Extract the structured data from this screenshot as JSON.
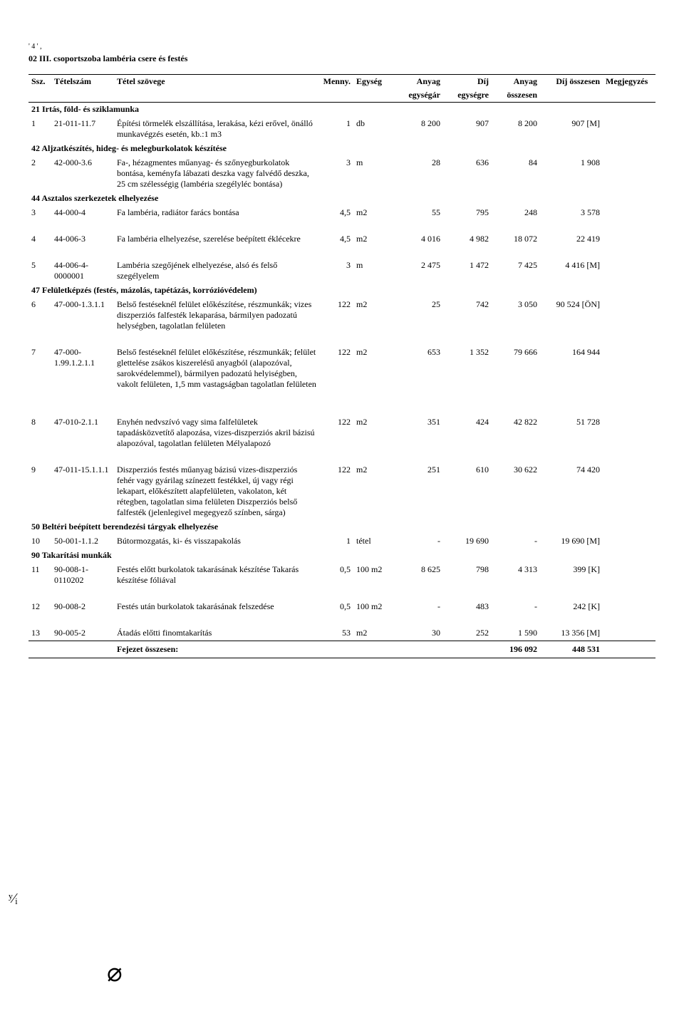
{
  "page_marks": "'  4        ' ,",
  "doc_title": "02 III. csoportszoba lambéria csere és festés",
  "headers": {
    "ssz": "Ssz.",
    "tetelszam": "Tételszám",
    "szoveg": "Tétel szövege",
    "menny": "Menny.",
    "egyseg": "Egység",
    "anyag_egysegar": "Anyag",
    "anyag_egysegar2": "egységár",
    "dij_egysegre": "Díj",
    "dij_egysegre2": "egységre",
    "anyag_osszesen": "Anyag",
    "anyag_osszesen2": "összesen",
    "dij_osszesen": "Díj összesen",
    "megj": "Megjegyzés"
  },
  "sections": [
    {
      "type": "section",
      "label": "21 Irtás, föld- és sziklamunka"
    },
    {
      "type": "item",
      "ssz": "1",
      "tsz": "21-011-11.7",
      "szov": "Építési törmelék elszállítása, lerakása, kézi erővel, önálló munkavégzés esetén,  kb.:1 m3",
      "menny": "1",
      "egys": "db",
      "ae": "8 200",
      "de": "907",
      "ao": "8 200",
      "do": "907 [M]"
    },
    {
      "type": "section",
      "label": "42 Aljzatkészítés, hideg- és melegburkolatok készítése"
    },
    {
      "type": "item",
      "ssz": "2",
      "tsz": "42-000-3.6",
      "szov": "Fa-, hézagmentes műanyag- és szőnyegburkolatok bontása, keményfa lábazati deszka vagy falvédő deszka, 25 cm szélességig (lambéria szegélyléc bontása)",
      "menny": "3",
      "egys": "m",
      "ae": "28",
      "de": "636",
      "ao": "84",
      "do": "1 908"
    },
    {
      "type": "section",
      "label": "44 Asztalos szerkezetek elhelyezése"
    },
    {
      "type": "item",
      "ssz": "3",
      "tsz": "44-000-4",
      "szov": "Fa lambéria, radiátor farács bontása",
      "menny": "4,5",
      "egys": "m2",
      "ae": "55",
      "de": "795",
      "ao": "248",
      "do": "3 578"
    },
    {
      "type": "spacer"
    },
    {
      "type": "item",
      "ssz": "4",
      "tsz": "44-006-3",
      "szov": "Fa lambéria elhelyezése, szerelése beépített éklécekre",
      "menny": "4,5",
      "egys": "m2",
      "ae": "4 016",
      "de": "4 982",
      "ao": "18 072",
      "do": "22 419"
    },
    {
      "type": "spacer"
    },
    {
      "type": "item",
      "ssz": "5",
      "tsz": "44-006-4-0000001",
      "szov": "Lambéria szegőjének elhelyezése, alsó és felső szegélyelem",
      "menny": "3",
      "egys": "m",
      "ae": "2 475",
      "de": "1 472",
      "ao": "7 425",
      "do": "4 416 [M]"
    },
    {
      "type": "section",
      "label": "47 Felületképzés (festés, mázolás, tapétázás, korrózióvédelem)"
    },
    {
      "type": "item",
      "ssz": "6",
      "tsz": "47-000-1.3.1.1",
      "szov": "Belső festéseknél felület előkészítése, részmunkák; vizes diszperziós falfesték lekaparása, bármilyen padozatú helységben, tagolatlan felületen",
      "menny": "122",
      "egys": "m2",
      "ae": "25",
      "de": "742",
      "ao": "3 050",
      "do": "90 524 [ÖN]"
    },
    {
      "type": "spacer"
    },
    {
      "type": "item",
      "ssz": "7",
      "tsz": "47-000-1.99.1.2.1.1",
      "szov": "Belső festéseknél felület előkészítése, részmunkák; felület glettelése zsákos kiszerelésű anyagból (alapozóval, sarokvédelemmel), bármilyen padozatú helyiségben, vakolt felületen, 1,5 mm vastagságban tagolatlan felületen",
      "menny": "122",
      "egys": "m2",
      "ae": "653",
      "de": "1 352",
      "ao": "79 666",
      "do": "164 944"
    },
    {
      "type": "spacer"
    },
    {
      "type": "spacer"
    },
    {
      "type": "item",
      "ssz": "8",
      "tsz": "47-010-2.1.1",
      "szov": "Enyhén nedvszívó vagy sima falfelületek tapadásközvetítő alapozása, vizes-diszperziós akril bázisú alapozóval, tagolatlan felületen Mélyalapozó",
      "menny": "122",
      "egys": "m2",
      "ae": "351",
      "de": "424",
      "ao": "42 822",
      "do": "51 728"
    },
    {
      "type": "spacer"
    },
    {
      "type": "item",
      "ssz": "9",
      "tsz": "47-011-15.1.1.1",
      "szov": "Diszperziós festés műanyag bázisú vizes-diszperziós  fehér vagy gyárilag színezett festékkel, új vagy régi lekapart, előkészített alapfelületen, vakolaton, két rétegben, tagolatlan sima felületen Diszperziós belső falfesték (jelenlegivel megegyező színben, sárga)",
      "menny": "122",
      "egys": "m2",
      "ae": "251",
      "de": "610",
      "ao": "30 622",
      "do": "74 420"
    },
    {
      "type": "section",
      "label": "50 Beltéri beépített berendezési tárgyak elhelyezése"
    },
    {
      "type": "item",
      "ssz": "10",
      "tsz": "50-001-1.1.2",
      "szov": "Bútormozgatás, ki- és visszapakolás",
      "menny": "1",
      "egys": "tétel",
      "ae": "-",
      "de": "19 690",
      "ao": "-",
      "do": "19 690 [M]"
    },
    {
      "type": "section",
      "label": "90 Takarítási munkák"
    },
    {
      "type": "item",
      "ssz": "11",
      "tsz": "90-008-1-0110202",
      "szov": "Festés előtt burkolatok takarásának készítése Takarás készítése fóliával",
      "menny": "0,5",
      "egys": "100 m2",
      "ae": "8 625",
      "de": "798",
      "ao": "4 313",
      "do": "399 [K]"
    },
    {
      "type": "spacer"
    },
    {
      "type": "item",
      "ssz": "12",
      "tsz": "90-008-2",
      "szov": "Festés után burkolatok takarásának felszedése",
      "menny": "0,5",
      "egys": "100 m2",
      "ae": "-",
      "de": "483",
      "ao": "-",
      "do": "242 [K]"
    },
    {
      "type": "spacer"
    },
    {
      "type": "item",
      "ssz": "13",
      "tsz": "90-005-2",
      "szov": "Átadás előtti finomtakarítás",
      "menny": "53",
      "egys": "m2",
      "ae": "30",
      "de": "252",
      "ao": "1 590",
      "do": "13 356 [M]"
    }
  ],
  "total": {
    "label": "Fejezet összesen:",
    "anyag": "196 092",
    "dij": "448 531"
  },
  "signature": "⌀",
  "sidemark": "ʸ⁄ᵢ"
}
